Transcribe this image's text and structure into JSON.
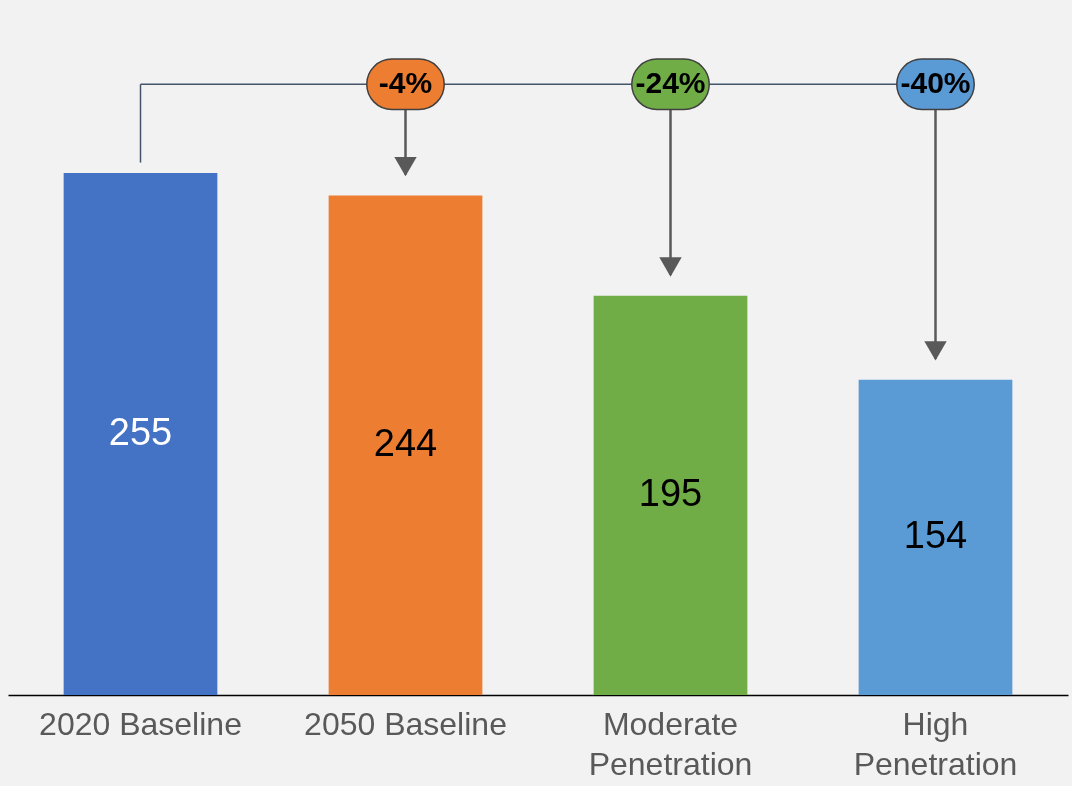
{
  "chart_data": {
    "type": "bar",
    "categories": [
      "2020 Baseline",
      "2050 Baseline",
      "Moderate Penetration",
      "High Penetration"
    ],
    "values": [
      255,
      244,
      195,
      154
    ],
    "colors": [
      "#4472c4",
      "#ed7d31",
      "#70ad47",
      "#5b9bd5"
    ],
    "data_labels": true,
    "annotations": [
      "-4%",
      "-24%",
      "-40%"
    ]
  }
}
